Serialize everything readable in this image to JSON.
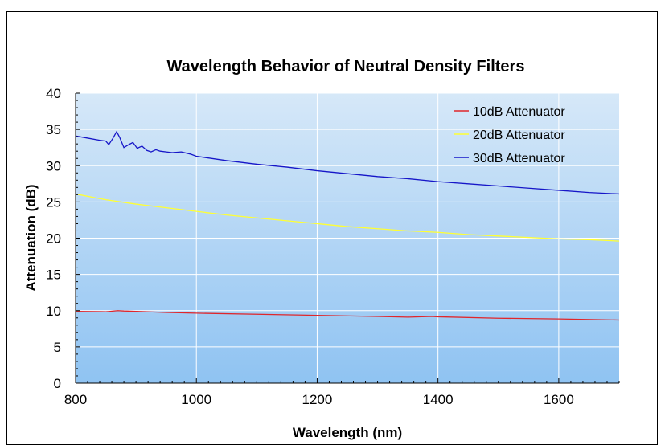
{
  "chart_data": {
    "type": "line",
    "title": "Wavelength Behavior of Neutral Density Filters",
    "xlabel": "Wavelength (nm)",
    "ylabel": "Attenuation (dB)",
    "xlim": [
      800,
      1700
    ],
    "ylim": [
      0,
      40
    ],
    "x_ticks": [
      800,
      1000,
      1200,
      1400,
      1600
    ],
    "y_ticks": [
      0,
      5,
      10,
      15,
      20,
      25,
      30,
      35,
      40
    ],
    "grid": true,
    "legend_position": "top-right",
    "background": {
      "top_color": "#d6e8f8",
      "bottom_color": "#8fc3f2"
    },
    "series": [
      {
        "name": "10dB Attenuator",
        "color": "#e0262b",
        "x": [
          800,
          850,
          870,
          880,
          900,
          950,
          1000,
          1100,
          1200,
          1300,
          1350,
          1390,
          1400,
          1500,
          1600,
          1700
        ],
        "y": [
          9.9,
          9.85,
          10.0,
          9.95,
          9.9,
          9.75,
          9.65,
          9.5,
          9.35,
          9.2,
          9.1,
          9.2,
          9.15,
          8.95,
          8.85,
          8.7
        ]
      },
      {
        "name": "20dB Attenuator",
        "color": "#ffff33",
        "x": [
          800,
          850,
          900,
          950,
          1000,
          1050,
          1100,
          1150,
          1200,
          1250,
          1300,
          1350,
          1400,
          1450,
          1500,
          1550,
          1600,
          1650,
          1700
        ],
        "y": [
          26.1,
          25.3,
          24.7,
          24.2,
          23.7,
          23.2,
          22.8,
          22.4,
          22.0,
          21.6,
          21.3,
          21.0,
          20.8,
          20.5,
          20.3,
          20.1,
          19.9,
          19.8,
          19.6
        ]
      },
      {
        "name": "30dB Attenuator",
        "color": "#1616c8",
        "x": [
          800,
          820,
          840,
          850,
          855,
          862,
          868,
          873,
          880,
          888,
          895,
          902,
          910,
          918,
          925,
          933,
          940,
          950,
          960,
          975,
          990,
          1000,
          1050,
          1100,
          1150,
          1200,
          1250,
          1300,
          1350,
          1400,
          1450,
          1500,
          1550,
          1600,
          1650,
          1700
        ],
        "y": [
          34.1,
          33.8,
          33.5,
          33.4,
          32.9,
          33.8,
          34.7,
          33.9,
          32.5,
          32.9,
          33.2,
          32.4,
          32.7,
          32.1,
          31.9,
          32.2,
          32.0,
          31.9,
          31.8,
          31.9,
          31.6,
          31.3,
          30.7,
          30.2,
          29.8,
          29.3,
          28.9,
          28.5,
          28.2,
          27.8,
          27.5,
          27.2,
          26.9,
          26.6,
          26.3,
          26.1
        ]
      }
    ]
  }
}
